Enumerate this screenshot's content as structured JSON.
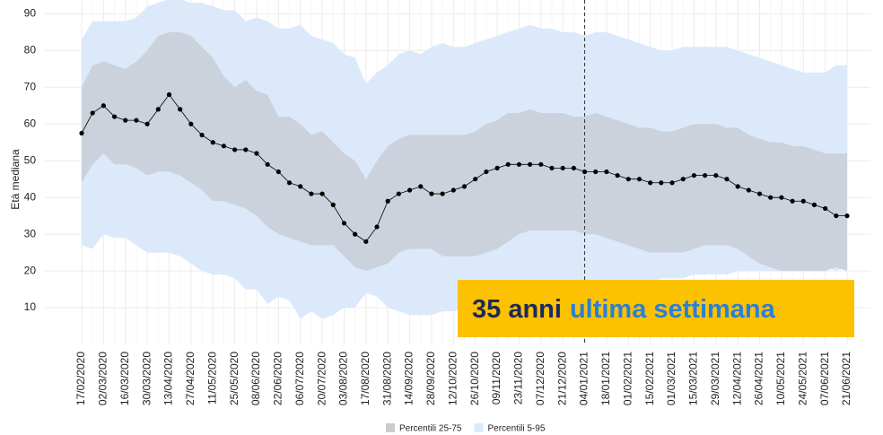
{
  "chart_data": {
    "type": "band-line",
    "y_label": "Età mediana",
    "ylim": [
      0,
      94
    ],
    "yticks": [
      10,
      20,
      30,
      40,
      50,
      60,
      70,
      80,
      90
    ],
    "grid": true,
    "categories": [
      "17/02/2020",
      null,
      "02/03/2020",
      null,
      "16/03/2020",
      null,
      "30/03/2020",
      null,
      "13/04/2020",
      null,
      "27/04/2020",
      null,
      "11/05/2020",
      null,
      "25/05/2020",
      null,
      "08/06/2020",
      null,
      "22/06/2020",
      null,
      "06/07/2020",
      null,
      "20/07/2020",
      null,
      "03/08/2020",
      null,
      "17/08/2020",
      null,
      "31/08/2020",
      null,
      "14/09/2020",
      null,
      "28/09/2020",
      null,
      "12/10/2020",
      null,
      "26/10/2020",
      null,
      "09/11/2020",
      null,
      "23/11/2020",
      null,
      "07/12/2020",
      null,
      "21/12/2020",
      null,
      "04/01/2021",
      null,
      "18/01/2021",
      null,
      "01/02/2021",
      null,
      "15/02/2021",
      null,
      "01/03/2021",
      null,
      "15/03/2021",
      null,
      "29/03/2021",
      null,
      "12/04/2021",
      null,
      "26/04/2021",
      null,
      "10/05/2021",
      null,
      "24/05/2021",
      null,
      "07/06/2021",
      null,
      "21/06/2021"
    ],
    "series": [
      {
        "name": "Percentili 5-95",
        "color": "#dbe9fb",
        "lower": [
          27,
          26,
          30,
          29,
          29,
          27,
          25,
          25,
          25,
          24,
          22,
          20,
          19,
          19,
          18,
          15,
          15,
          11,
          13,
          12,
          7,
          9,
          7,
          8,
          10,
          10,
          14,
          13,
          10,
          9,
          8,
          8,
          8,
          9,
          9,
          10,
          11,
          11,
          12,
          12,
          12,
          13,
          13,
          13,
          14,
          14,
          14,
          15,
          15,
          16,
          16,
          17,
          17,
          18,
          18,
          18,
          19,
          19,
          19,
          19,
          20,
          20,
          20,
          20,
          20,
          20,
          20,
          20,
          21,
          20,
          21
        ],
        "upper": [
          83,
          88,
          88,
          88,
          88,
          89,
          92,
          93,
          94,
          94,
          93,
          93,
          92,
          91,
          91,
          88,
          89,
          88,
          86,
          86,
          87,
          84,
          83,
          82,
          79,
          78,
          71,
          74,
          76,
          79,
          80,
          79,
          81,
          82,
          81,
          81,
          82,
          83,
          84,
          85,
          86,
          87,
          86,
          86,
          85,
          85,
          84,
          85,
          85,
          84,
          83,
          82,
          81,
          80,
          80,
          81,
          81,
          81,
          81,
          81,
          80,
          79,
          78,
          77,
          76,
          75,
          74,
          74,
          74,
          76,
          76
        ]
      },
      {
        "name": "Percentili 25-75",
        "color": "#ccd2db",
        "legend_color": "#cccccc",
        "lower": [
          44,
          49,
          52,
          49,
          49,
          48,
          46,
          47,
          47,
          46,
          44,
          42,
          39,
          39,
          38,
          37,
          35,
          32,
          30,
          29,
          28,
          27,
          27,
          27,
          24,
          21,
          20,
          21,
          22,
          25,
          26,
          26,
          26,
          24,
          24,
          24,
          24,
          25,
          26,
          28,
          30,
          31,
          31,
          31,
          31,
          31,
          30,
          30,
          29,
          28,
          27,
          26,
          25,
          25,
          25,
          25,
          26,
          27,
          27,
          27,
          26,
          24,
          22,
          21,
          20,
          20,
          20,
          20,
          20,
          21,
          20
        ],
        "upper": [
          70,
          76,
          77,
          76,
          75,
          77,
          80,
          84,
          85,
          85,
          84,
          81,
          78,
          73,
          70,
          72,
          69,
          68,
          62,
          62,
          60,
          57,
          58,
          55,
          52,
          50,
          45,
          50,
          54,
          56,
          57,
          57,
          57,
          57,
          57,
          57,
          58,
          60,
          61,
          63,
          63,
          64,
          63,
          63,
          63,
          62,
          62,
          63,
          62,
          61,
          60,
          59,
          59,
          58,
          58,
          59,
          60,
          60,
          60,
          59,
          59,
          57,
          56,
          55,
          55,
          54,
          54,
          53,
          52,
          52,
          52
        ]
      }
    ],
    "median": {
      "color": "#000000",
      "values": [
        57.5,
        63,
        65,
        62,
        61,
        61,
        60,
        64,
        68,
        64,
        60,
        57,
        55,
        54,
        53,
        53,
        52,
        49,
        47,
        44,
        43,
        41,
        41,
        38,
        33,
        30,
        28,
        32,
        39,
        41,
        42,
        43,
        41,
        41,
        42,
        43,
        45,
        47,
        48,
        49,
        49,
        49,
        49,
        48,
        48,
        48,
        47,
        47,
        47,
        46,
        45,
        45,
        44,
        44,
        44,
        45,
        46,
        46,
        46,
        45,
        43,
        42,
        41,
        40,
        40,
        39,
        39,
        38,
        37,
        35,
        35
      ]
    },
    "vline": "04/01/2021",
    "annotation": {
      "parts": [
        "35 anni",
        "ultima settimana"
      ],
      "colors": [
        "#1b2a5c",
        "#2b80d3"
      ],
      "background": "#fcc100"
    }
  }
}
